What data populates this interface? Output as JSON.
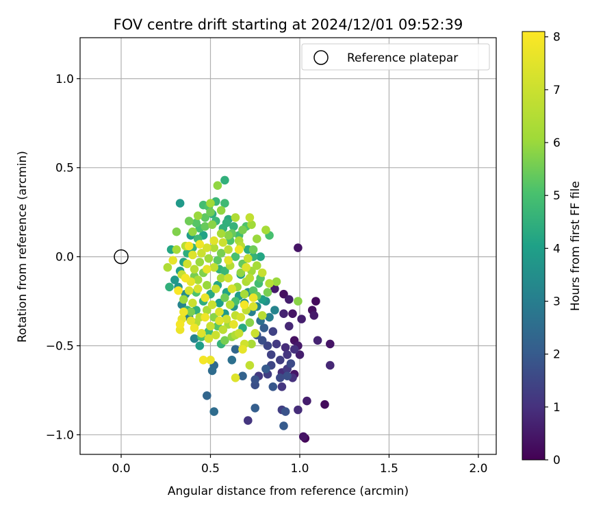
{
  "chart_data": {
    "type": "scatter",
    "title": "FOV centre drift starting at 2024/12/01 09:52:39",
    "xlabel": "Angular distance from reference (arcmin)",
    "ylabel": "Rotation from reference (arcmin)",
    "xlim": [
      -0.23,
      2.1
    ],
    "ylim": [
      -1.11,
      1.23
    ],
    "xticks": [
      0.0,
      0.5,
      1.0,
      1.5,
      2.0
    ],
    "xtick_labels": [
      "0.0",
      "0.5",
      "1.0",
      "1.5",
      "2.0"
    ],
    "yticks": [
      -1.0,
      -0.5,
      0.0,
      0.5,
      1.0
    ],
    "ytick_labels": [
      "−1.0",
      "−0.5",
      "0.0",
      "0.5",
      "1.0"
    ],
    "grid": true,
    "legend": {
      "position": "top-right",
      "entries": [
        "Reference platepar"
      ]
    },
    "reference_point": {
      "x": 0.0,
      "y": 0.0
    },
    "colorbar": {
      "label": "Hours from first FF file",
      "colormap": "viridis",
      "range": [
        0,
        8.1
      ],
      "ticks": [
        0,
        1,
        2,
        3,
        4,
        5,
        6,
        7,
        8
      ],
      "tick_labels": [
        "0",
        "1",
        "2",
        "3",
        "4",
        "5",
        "6",
        "7",
        "8"
      ]
    },
    "point_fields": [
      "x",
      "y",
      "hours"
    ],
    "points": [
      [
        0.99,
        0.05,
        0.4
      ],
      [
        0.91,
        -0.21,
        0.3
      ],
      [
        0.86,
        -0.18,
        0.5
      ],
      [
        0.94,
        -0.24,
        0.6
      ],
      [
        1.09,
        -0.25,
        0.2
      ],
      [
        1.07,
        -0.3,
        0.3
      ],
      [
        0.96,
        -0.32,
        0.4
      ],
      [
        1.08,
        -0.33,
        0.5
      ],
      [
        1.01,
        -0.35,
        0.6
      ],
      [
        0.91,
        -0.32,
        0.7
      ],
      [
        0.94,
        -0.39,
        0.8
      ],
      [
        0.97,
        -0.47,
        0.3
      ],
      [
        1.1,
        -0.47,
        0.7
      ],
      [
        1.17,
        -0.49,
        0.4
      ],
      [
        0.99,
        -0.5,
        0.5
      ],
      [
        0.92,
        -0.51,
        0.9
      ],
      [
        0.97,
        -0.52,
        1.0
      ],
      [
        0.87,
        -0.49,
        1.2
      ],
      [
        0.84,
        -0.55,
        1.4
      ],
      [
        0.93,
        -0.55,
        1.1
      ],
      [
        1.0,
        -0.55,
        0.6
      ],
      [
        0.89,
        -0.58,
        1.3
      ],
      [
        0.95,
        -0.6,
        1.6
      ],
      [
        0.84,
        -0.61,
        1.5
      ],
      [
        1.17,
        -0.61,
        0.8
      ],
      [
        0.93,
        -0.63,
        1.2
      ],
      [
        0.9,
        -0.65,
        0.9
      ],
      [
        0.97,
        -0.66,
        0.4
      ],
      [
        0.93,
        -0.67,
        1.7
      ],
      [
        0.77,
        -0.67,
        1.2
      ],
      [
        0.82,
        -0.66,
        1.3
      ],
      [
        0.89,
        -0.68,
        1.6
      ],
      [
        0.96,
        -0.68,
        1.0
      ],
      [
        0.81,
        -0.63,
        2.0
      ],
      [
        0.75,
        -0.69,
        1.8
      ],
      [
        0.68,
        -0.67,
        2.2
      ],
      [
        0.75,
        -0.72,
        1.7
      ],
      [
        0.85,
        -0.73,
        1.9
      ],
      [
        0.9,
        -0.73,
        1.1
      ],
      [
        1.04,
        -0.81,
        0.6
      ],
      [
        1.14,
        -0.83,
        0.2
      ],
      [
        0.99,
        -0.86,
        0.9
      ],
      [
        0.9,
        -0.86,
        1.3
      ],
      [
        0.92,
        -0.87,
        1.8
      ],
      [
        1.03,
        -1.02,
        0.1
      ],
      [
        1.02,
        -1.01,
        0.4
      ],
      [
        0.91,
        -0.95,
        2.0
      ],
      [
        0.71,
        -0.92,
        1.1
      ],
      [
        0.75,
        -0.85,
        2.1
      ],
      [
        0.64,
        -0.52,
        2.3
      ],
      [
        0.62,
        -0.58,
        2.6
      ],
      [
        0.51,
        -0.64,
        2.5
      ],
      [
        0.52,
        -0.61,
        2.4
      ],
      [
        0.48,
        -0.78,
        2.3
      ],
      [
        0.52,
        -0.87,
        2.5
      ],
      [
        0.82,
        -0.5,
        1.5
      ],
      [
        0.79,
        -0.47,
        1.7
      ],
      [
        0.76,
        -0.44,
        1.9
      ],
      [
        0.8,
        -0.4,
        2.1
      ],
      [
        0.85,
        -0.42,
        1.4
      ],
      [
        0.78,
        -0.36,
        2.6
      ],
      [
        0.83,
        -0.34,
        3.0
      ],
      [
        0.86,
        -0.3,
        3.2
      ],
      [
        0.73,
        -0.31,
        3.1
      ],
      [
        0.76,
        -0.28,
        3.3
      ],
      [
        0.81,
        -0.25,
        3.5
      ],
      [
        0.69,
        -0.26,
        3.4
      ],
      [
        0.71,
        -0.2,
        3.6
      ],
      [
        0.66,
        -0.22,
        3.9
      ],
      [
        0.63,
        -0.28,
        3.7
      ],
      [
        0.58,
        -0.32,
        3.8
      ],
      [
        0.55,
        -0.26,
        4.0
      ],
      [
        0.59,
        -0.2,
        4.1
      ],
      [
        0.54,
        -0.16,
        4.2
      ],
      [
        0.5,
        -0.21,
        4.3
      ],
      [
        0.46,
        -0.25,
        4.4
      ],
      [
        0.42,
        -0.3,
        4.5
      ],
      [
        0.38,
        -0.34,
        3.0
      ],
      [
        0.34,
        -0.27,
        3.2
      ],
      [
        0.36,
        -0.21,
        3.4
      ],
      [
        0.32,
        -0.17,
        3.6
      ],
      [
        0.3,
        -0.13,
        3.8
      ],
      [
        0.33,
        -0.08,
        4.0
      ],
      [
        0.35,
        -0.03,
        4.2
      ],
      [
        0.37,
        0.02,
        4.4
      ],
      [
        0.4,
        0.05,
        4.6
      ],
      [
        0.43,
        0.1,
        4.8
      ],
      [
        0.44,
        0.16,
        5.0
      ],
      [
        0.42,
        0.19,
        5.2
      ],
      [
        0.47,
        0.22,
        5.3
      ],
      [
        0.49,
        0.28,
        5.1
      ],
      [
        0.46,
        0.29,
        4.9
      ],
      [
        0.5,
        0.25,
        5.5
      ],
      [
        0.53,
        0.2,
        4.7
      ],
      [
        0.57,
        0.16,
        4.5
      ],
      [
        0.6,
        0.21,
        4.3
      ],
      [
        0.63,
        0.17,
        4.6
      ],
      [
        0.68,
        0.15,
        5.6
      ],
      [
        0.73,
        0.18,
        6.1
      ],
      [
        0.72,
        0.22,
        6.8
      ],
      [
        0.76,
        0.1,
        6.0
      ],
      [
        0.71,
        0.04,
        4.4
      ],
      [
        0.66,
        0.09,
        6.3
      ],
      [
        0.54,
        0.4,
        5.9
      ],
      [
        0.58,
        0.43,
        4.5
      ],
      [
        0.58,
        0.3,
        4.8
      ],
      [
        0.33,
        0.3,
        3.8
      ],
      [
        0.31,
        0.14,
        5.7
      ],
      [
        0.28,
        0.04,
        4.2
      ],
      [
        0.26,
        -0.06,
        6.4
      ],
      [
        0.27,
        -0.17,
        4.5
      ],
      [
        0.81,
        0.15,
        6.2
      ],
      [
        0.83,
        0.12,
        5.0
      ],
      [
        0.87,
        -0.14,
        6.0
      ],
      [
        0.99,
        -0.25,
        5.8
      ],
      [
        0.72,
        -0.12,
        6.6
      ],
      [
        0.76,
        -0.05,
        6.2
      ],
      [
        0.79,
        -0.09,
        6.9
      ],
      [
        0.68,
        -0.04,
        5.4
      ],
      [
        0.64,
        0.0,
        5.0
      ],
      [
        0.6,
        0.04,
        6.7
      ],
      [
        0.57,
        0.08,
        7.0
      ],
      [
        0.52,
        0.09,
        7.5
      ],
      [
        0.48,
        0.05,
        7.2
      ],
      [
        0.44,
        0.07,
        7.8
      ],
      [
        0.4,
        0.01,
        7.4
      ],
      [
        0.37,
        -0.04,
        7.1
      ],
      [
        0.34,
        -0.1,
        6.9
      ],
      [
        0.39,
        -0.14,
        7.6
      ],
      [
        0.43,
        -0.18,
        7.3
      ],
      [
        0.47,
        -0.23,
        7.7
      ],
      [
        0.51,
        -0.27,
        7.0
      ],
      [
        0.55,
        -0.31,
        7.4
      ],
      [
        0.59,
        -0.35,
        7.1
      ],
      [
        0.63,
        -0.38,
        7.6
      ],
      [
        0.67,
        -0.34,
        7.2
      ],
      [
        0.7,
        -0.3,
        6.8
      ],
      [
        0.74,
        -0.28,
        7.3
      ],
      [
        0.61,
        -0.27,
        6.5
      ],
      [
        0.65,
        -0.17,
        6.0
      ],
      [
        0.56,
        -0.12,
        6.3
      ],
      [
        0.52,
        -0.06,
        6.8
      ],
      [
        0.49,
        -0.01,
        6.1
      ],
      [
        0.45,
        0.02,
        7.0
      ],
      [
        0.41,
        -0.07,
        6.6
      ],
      [
        0.36,
        -0.12,
        7.9
      ],
      [
        0.32,
        -0.19,
        8.0
      ],
      [
        0.35,
        -0.31,
        7.8
      ],
      [
        0.34,
        -0.35,
        7.6
      ],
      [
        0.33,
        -0.38,
        7.9
      ],
      [
        0.33,
        -0.41,
        7.7
      ],
      [
        0.39,
        -0.36,
        7.5
      ],
      [
        0.41,
        -0.4,
        7.8
      ],
      [
        0.45,
        -0.43,
        7.4
      ],
      [
        0.49,
        -0.46,
        7.2
      ],
      [
        0.53,
        -0.44,
        7.0
      ],
      [
        0.57,
        -0.41,
        6.7
      ],
      [
        0.64,
        -0.44,
        6.4
      ],
      [
        0.66,
        -0.43,
        6.9
      ],
      [
        0.69,
        -0.49,
        7.1
      ],
      [
        0.73,
        -0.49,
        6.3
      ],
      [
        0.75,
        -0.43,
        7.0
      ],
      [
        0.79,
        -0.33,
        6.6
      ],
      [
        0.68,
        -0.52,
        7.6
      ],
      [
        0.72,
        -0.61,
        6.8
      ],
      [
        0.64,
        -0.68,
        7.4
      ],
      [
        0.46,
        -0.58,
        7.9
      ],
      [
        0.5,
        -0.58,
        7.7
      ],
      [
        0.45,
        -0.45,
        5.0
      ],
      [
        0.49,
        -0.42,
        4.8
      ],
      [
        0.54,
        -0.39,
        5.2
      ],
      [
        0.58,
        -0.47,
        5.6
      ],
      [
        0.41,
        -0.46,
        3.2
      ],
      [
        0.44,
        -0.5,
        3.9
      ],
      [
        0.62,
        0.13,
        5.4
      ],
      [
        0.51,
        0.18,
        5.8
      ],
      [
        0.56,
        0.13,
        6.2
      ],
      [
        0.61,
        0.09,
        5.1
      ],
      [
        0.46,
        0.12,
        4.1
      ],
      [
        0.39,
        0.12,
        3.9
      ],
      [
        0.38,
        0.2,
        5.5
      ],
      [
        0.53,
        0.31,
        4.7
      ],
      [
        0.51,
        0.24,
        4.4
      ],
      [
        0.5,
        0.3,
        6.1
      ],
      [
        0.61,
        -0.05,
        6.5
      ],
      [
        0.58,
        -0.08,
        4.7
      ],
      [
        0.54,
        -0.02,
        5.3
      ],
      [
        0.46,
        -0.09,
        5.7
      ],
      [
        0.43,
        -0.13,
        6.2
      ],
      [
        0.53,
        -0.18,
        6.9
      ],
      [
        0.6,
        -0.12,
        7.1
      ],
      [
        0.67,
        -0.09,
        5.9
      ],
      [
        0.7,
        -0.14,
        6.4
      ],
      [
        0.74,
        -0.19,
        5.2
      ],
      [
        0.77,
        -0.15,
        4.9
      ],
      [
        0.82,
        -0.2,
        5.6
      ],
      [
        0.79,
        -0.24,
        4.0
      ],
      [
        0.64,
        -0.25,
        5.0
      ],
      [
        0.58,
        -0.23,
        5.5
      ],
      [
        0.52,
        -0.34,
        5.8
      ],
      [
        0.48,
        -0.3,
        6.3
      ],
      [
        0.44,
        -0.34,
        6.6
      ],
      [
        0.4,
        -0.26,
        7.0
      ],
      [
        0.37,
        -0.3,
        4.6
      ],
      [
        0.42,
        -0.2,
        5.1
      ],
      [
        0.48,
        -0.16,
        6.0
      ],
      [
        0.55,
        -0.07,
        4.5
      ],
      [
        0.62,
        -0.18,
        7.3
      ],
      [
        0.69,
        -0.21,
        6.2
      ],
      [
        0.76,
        -0.22,
        5.4
      ],
      [
        0.72,
        -0.37,
        5.8
      ],
      [
        0.68,
        -0.4,
        4.3
      ],
      [
        0.62,
        -0.45,
        5.9
      ],
      [
        0.56,
        -0.49,
        4.6
      ],
      [
        0.6,
        -0.02,
        7.5
      ],
      [
        0.66,
        0.04,
        7.8
      ],
      [
        0.71,
        -0.01,
        6.9
      ],
      [
        0.74,
        0.0,
        4.6
      ],
      [
        0.67,
        -0.1,
        4.0
      ],
      [
        0.56,
        0.02,
        5.6
      ],
      [
        0.52,
        0.05,
        6.4
      ],
      [
        0.47,
        0.17,
        5.4
      ],
      [
        0.43,
        0.23,
        6.0
      ],
      [
        0.4,
        0.14,
        5.9
      ],
      [
        0.36,
        0.06,
        6.6
      ],
      [
        0.31,
        0.04,
        6.2
      ],
      [
        0.29,
        -0.02,
        7.6
      ],
      [
        0.38,
        0.06,
        7.9
      ],
      [
        0.56,
        0.26,
        5.9
      ],
      [
        0.64,
        0.22,
        6.4
      ],
      [
        0.7,
        0.17,
        5.1
      ],
      [
        0.66,
        0.12,
        4.9
      ],
      [
        0.59,
        0.19,
        4.5
      ],
      [
        0.6,
        0.12,
        5.8
      ],
      [
        0.67,
        0.06,
        6.6
      ],
      [
        0.74,
        0.04,
        5.5
      ],
      [
        0.78,
        0.0,
        4.2
      ],
      [
        0.73,
        -0.08,
        6.1
      ],
      [
        0.7,
        -0.06,
        7.4
      ],
      [
        0.78,
        -0.12,
        5.2
      ],
      [
        0.83,
        -0.15,
        6.5
      ],
      [
        0.74,
        -0.23,
        7.7
      ],
      [
        0.69,
        -0.27,
        7.9
      ],
      [
        0.64,
        -0.33,
        6.8
      ],
      [
        0.6,
        -0.38,
        6.2
      ],
      [
        0.55,
        -0.36,
        7.5
      ],
      [
        0.5,
        -0.39,
        6.9
      ],
      [
        0.47,
        -0.34,
        7.8
      ],
      [
        0.42,
        -0.37,
        6.5
      ],
      [
        0.39,
        -0.31,
        5.6
      ],
      [
        0.35,
        -0.24,
        6.0
      ],
      [
        0.38,
        -0.19,
        7.2
      ],
      [
        0.41,
        -0.11,
        5.6
      ],
      [
        0.44,
        -0.03,
        6.0
      ],
      [
        0.48,
        -0.07,
        7.6
      ]
    ]
  }
}
